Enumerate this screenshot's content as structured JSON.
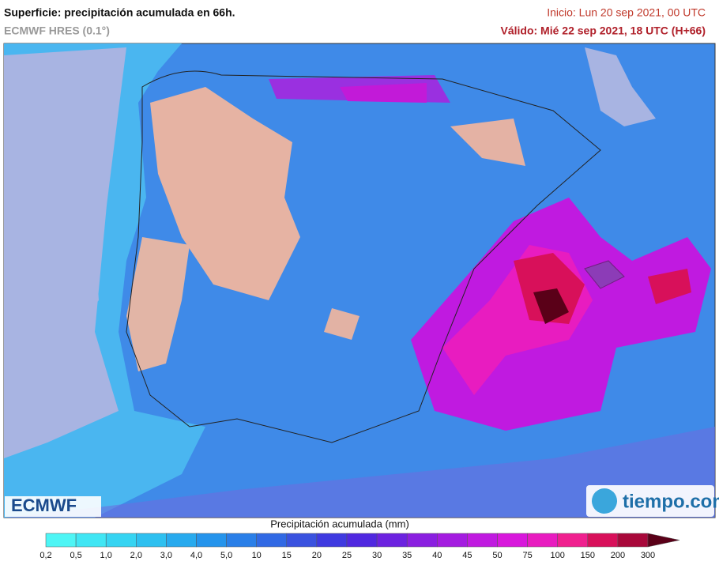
{
  "header": {
    "title": "Superficie: precipitación acumulada en 66h.",
    "model": "ECMWF HRES (0.1°)",
    "init": "Inicio: Lun 20 sep 2021, 00 UTC",
    "valid": "Válido: Mié 22 sep 2021, 18 UTC (H+66)"
  },
  "logos": {
    "left": "ECMWF",
    "right": "tiempo.com"
  },
  "legend": {
    "title": "Precipitación acumulada (mm)",
    "labels": [
      "0,2",
      "0,5",
      "1,0",
      "2,0",
      "3,0",
      "4,0",
      "5,0",
      "10",
      "15",
      "20",
      "25",
      "30",
      "35",
      "40",
      "45",
      "50",
      "75",
      "100",
      "150",
      "200",
      "300"
    ],
    "colors": [
      "#4ef5f5",
      "#40e6f4",
      "#36d4f2",
      "#2ec0f0",
      "#28aaee",
      "#2594ec",
      "#2a7fe8",
      "#3169e4",
      "#3a52df",
      "#3f3ae0",
      "#5028e0",
      "#6c22e0",
      "#8a1fe0",
      "#a41ce0",
      "#c01ae0",
      "#d818dc",
      "#e81cc0",
      "#f0208f",
      "#d8105a",
      "#a8083a",
      "#5a0018"
    ]
  }
}
